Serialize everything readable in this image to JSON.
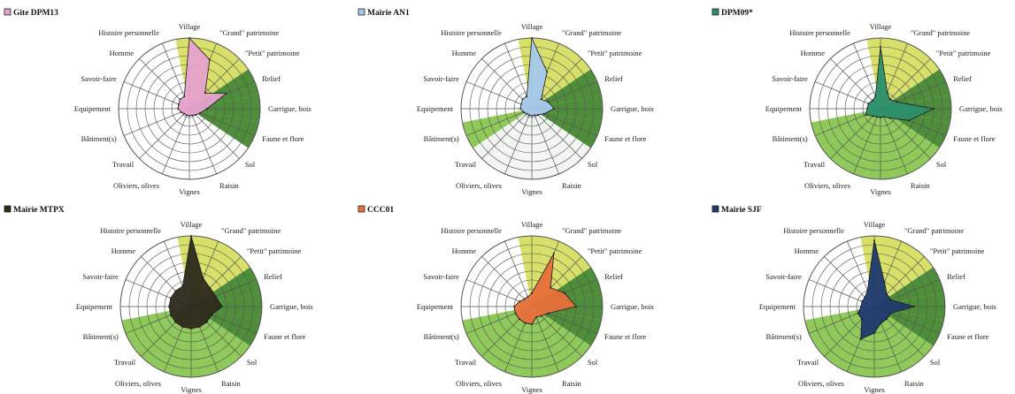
{
  "chart_data": {
    "type": "radar",
    "axes": [
      "Village",
      "\"Grand\" patrimoine",
      "\"Petit\" patrimoine",
      "Relief",
      "Garrigue, bois",
      "Faune et flore",
      "Sol",
      "Raisin",
      "Vignes",
      "Oliviers, olives",
      "Travail",
      "Bâtiment(s)",
      "Equipement",
      "Savoir-faire",
      "Homme",
      "Histoire personnelle"
    ],
    "axis_labels_shown": [
      "Village",
      "\"Grand\" patrimoine",
      "\"Petit\" patrimoine",
      "Relief",
      "Garrigue, bois",
      "Faune et flore",
      "Sol",
      "Raisin",
      "Vignes",
      "Oliviers, olives",
      "Travail",
      "Bâtiment(s)",
      "Equipement",
      "Savoir-faire",
      "Homme",
      "Histoire personnelle"
    ],
    "scale_max": 8,
    "rings": 8,
    "background_colors": {
      "light": "#d8e06a",
      "dark": "#4e8e3a",
      "mid": "#8fc95a",
      "pale": "#f4f6f4"
    },
    "charts": [
      {
        "name": "Gite DPM13",
        "color": "#e6a2cc",
        "background": {
          "Village": "light",
          "\"Grand\" patrimoine": "light",
          "\"Petit\" patrimoine": "light",
          "Relief": "dark",
          "Garrigue, bois": "dark",
          "Faune et flore": "dark"
        },
        "values": [
          8,
          6,
          2.5,
          4.5,
          2,
          1.3,
          1,
          0.8,
          0.8,
          0.8,
          0.8,
          1,
          1.3,
          1.3,
          1.5,
          1.5
        ]
      },
      {
        "name": "Mairie AN1",
        "color": "#a7c8ec",
        "background": {
          "Village": "light",
          "\"Grand\" patrimoine": "light",
          "\"Petit\" patrimoine": "light",
          "Relief": "dark",
          "Garrigue, bois": "dark",
          "Faune et flore": "dark",
          "Sol": "pale",
          "Raisin": "pale",
          "Vignes": "pale",
          "Oliviers, olives": "pale",
          "Travail": "pale",
          "Bâtiment(s)": "mid"
        },
        "values": [
          8,
          4.5,
          1.5,
          2,
          2.5,
          1.5,
          1,
          0.8,
          0.8,
          0.8,
          0.8,
          1,
          1.3,
          1.3,
          1.5,
          1.5
        ]
      },
      {
        "name": "DPM09*",
        "color": "#2b8f69",
        "background": {
          "Village": "light",
          "\"Grand\" patrimoine": "light",
          "\"Petit\" patrimoine": "light",
          "Relief": "dark",
          "Garrigue, bois": "dark",
          "Faune et flore": "dark",
          "Sol": "mid",
          "Raisin": "mid",
          "Vignes": "mid",
          "Oliviers, olives": "mid",
          "Travail": "mid",
          "Bâtiment(s)": "mid"
        },
        "values": [
          7,
          2,
          1.5,
          2,
          6,
          3.5,
          1.5,
          1,
          1,
          1,
          1.2,
          1.8,
          1.5,
          1.5,
          1.3,
          1.5
        ]
      },
      {
        "name": "Mairie MTPX",
        "color": "#2d2a1c",
        "background": {
          "Village": "light",
          "\"Grand\" patrimoine": "light",
          "\"Petit\" patrimoine": "light",
          "Relief": "dark",
          "Garrigue, bois": "dark",
          "Faune et flore": "dark",
          "Sol": "mid",
          "Raisin": "mid",
          "Vignes": "mid",
          "Oliviers, olives": "mid",
          "Travail": "mid",
          "Bâtiment(s)": "mid"
        },
        "values": [
          8,
          3.5,
          3,
          3,
          3.5,
          2.5,
          2.5,
          2.5,
          2.5,
          2.5,
          2.5,
          2.5,
          2.5,
          2.5,
          2.5,
          2.5
        ]
      },
      {
        "name": "CCC01",
        "color": "#e8703a",
        "background": {
          "Village": "light",
          "\"Grand\" patrimoine": "light",
          "\"Petit\" patrimoine": "light",
          "Relief": "dark",
          "Garrigue, bois": "dark",
          "Faune et flore": "dark",
          "Sol": "mid",
          "Raisin": "mid",
          "Vignes": "mid",
          "Oliviers, olives": "mid",
          "Travail": "mid",
          "Bâtiment(s)": "mid"
        },
        "values": [
          1.5,
          6.5,
          3,
          4,
          5,
          2,
          1.5,
          1.3,
          2,
          2,
          2,
          2,
          2,
          1.5,
          1.2,
          1.2
        ]
      },
      {
        "name": "Mairie SJF",
        "color": "#1d3a6e",
        "background": {
          "Village": "light",
          "\"Grand\" patrimoine": "light",
          "\"Petit\" patrimoine": "light",
          "Relief": "dark",
          "Garrigue, bois": "dark",
          "Faune et flore": "dark",
          "Sol": "mid",
          "Raisin": "mid",
          "Vignes": "mid",
          "Oliviers, olives": "mid",
          "Travail": "mid",
          "Bâtiment(s)": "mid"
        },
        "values": [
          7.5,
          3,
          2,
          2,
          4.5,
          2,
          2,
          2,
          3,
          4,
          2,
          2,
          1.5,
          1.5,
          1.5,
          2
        ]
      }
    ]
  }
}
